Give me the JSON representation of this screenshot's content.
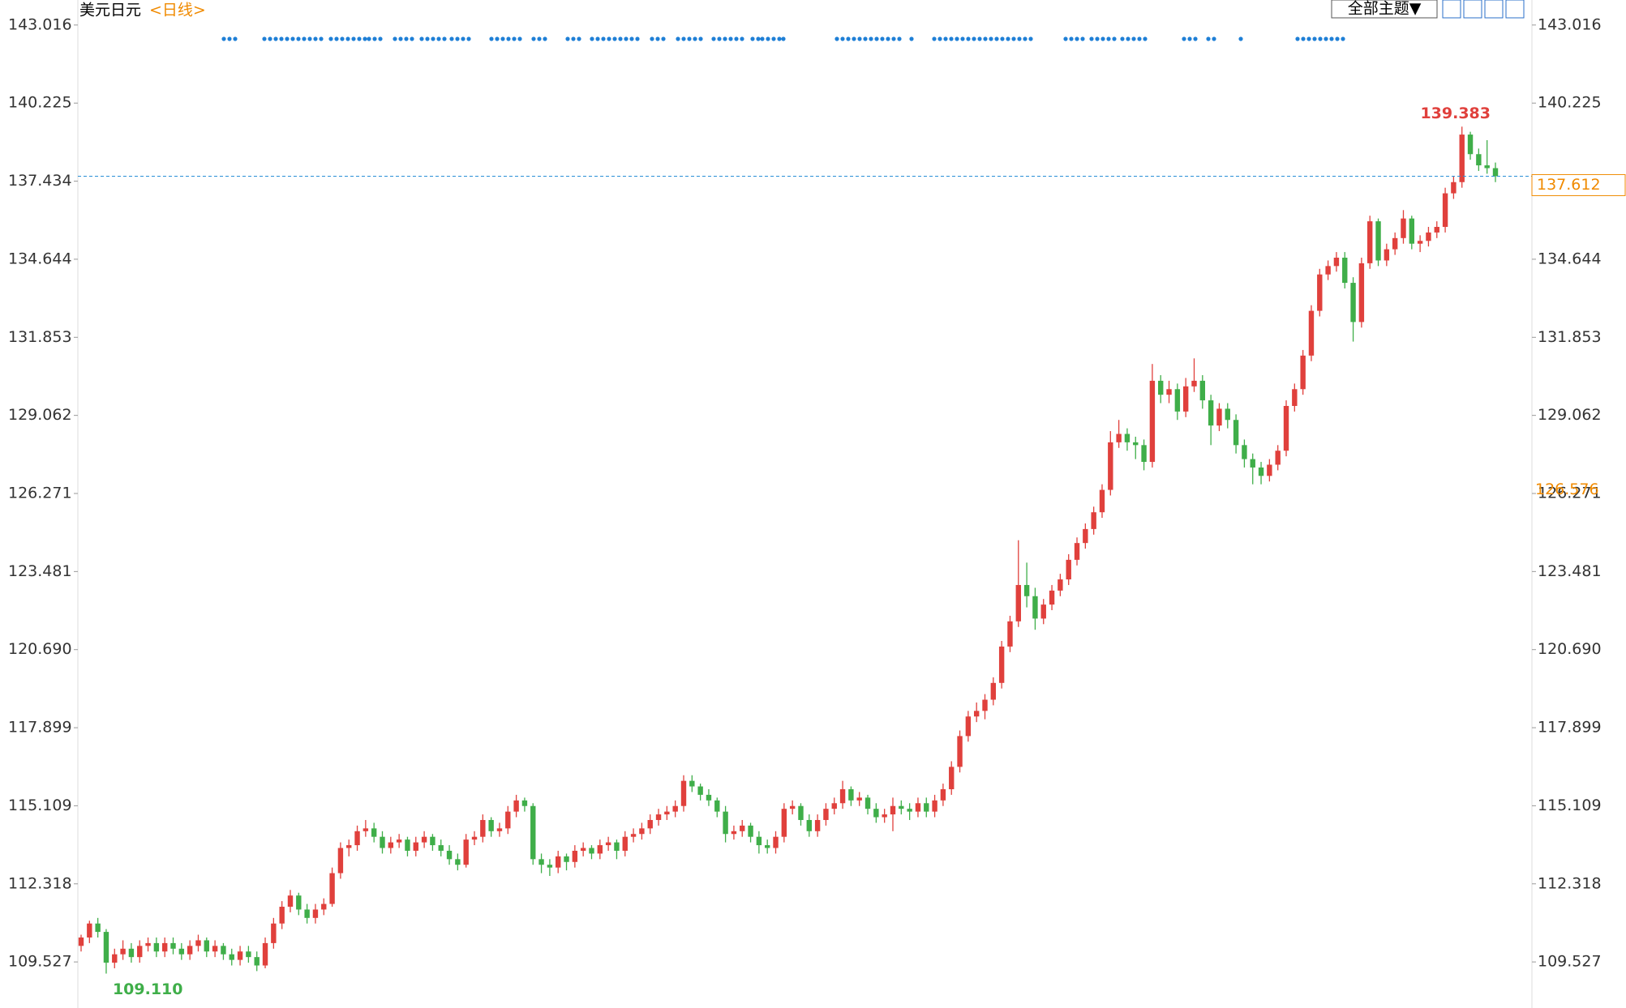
{
  "chart_data": {
    "type": "candlestick",
    "title": "美元日元",
    "period": "<日线>",
    "theme_button": "全部主题▼",
    "up_color": "#e0403c",
    "down_color": "#3fae49",
    "grid": false,
    "ylim": [
      107.88,
      143.91
    ],
    "yticks": [
      109.527,
      112.318,
      115.109,
      117.899,
      {
        "value": 120.69,
        "label": "120.690"
      },
      123.481,
      126.271,
      129.062,
      131.853,
      134.644,
      137.434,
      140.225,
      143.016
    ],
    "marker_value": 126.576,
    "extreme_labels": {
      "high": "139.383",
      "low": "109.110"
    },
    "ohlc": [
      [
        110.1,
        110.5,
        109.9,
        110.4
      ],
      [
        110.4,
        111.0,
        110.2,
        110.9
      ],
      [
        110.9,
        111.1,
        110.4,
        110.6
      ],
      [
        110.6,
        110.7,
        109.11,
        109.5
      ],
      [
        109.5,
        110.0,
        109.3,
        109.8
      ],
      [
        109.8,
        110.3,
        109.6,
        110.0
      ],
      [
        110.0,
        110.2,
        109.5,
        109.7
      ],
      [
        109.7,
        110.3,
        109.5,
        110.1
      ],
      [
        110.1,
        110.4,
        109.9,
        110.2
      ],
      [
        110.2,
        110.4,
        109.7,
        109.9
      ],
      [
        109.9,
        110.4,
        109.7,
        110.2
      ],
      [
        110.2,
        110.4,
        109.8,
        110.0
      ],
      [
        110.0,
        110.2,
        109.6,
        109.8
      ],
      [
        109.8,
        110.3,
        109.6,
        110.1
      ],
      [
        110.1,
        110.5,
        109.9,
        110.3
      ],
      [
        110.3,
        110.4,
        109.7,
        109.9
      ],
      [
        109.9,
        110.3,
        109.7,
        110.1
      ],
      [
        110.1,
        110.2,
        109.6,
        109.8
      ],
      [
        109.8,
        110.0,
        109.4,
        109.6
      ],
      [
        109.6,
        110.1,
        109.4,
        109.9
      ],
      [
        109.9,
        110.1,
        109.5,
        109.7
      ],
      [
        109.7,
        109.9,
        109.2,
        109.4
      ],
      [
        109.4,
        110.4,
        109.3,
        110.2
      ],
      [
        110.2,
        111.1,
        110.0,
        110.9
      ],
      [
        110.9,
        111.7,
        110.7,
        111.5
      ],
      [
        111.5,
        112.1,
        111.3,
        111.9
      ],
      [
        111.9,
        112.0,
        111.2,
        111.4
      ],
      [
        111.4,
        111.6,
        110.9,
        111.1
      ],
      [
        111.1,
        111.6,
        110.9,
        111.4
      ],
      [
        111.4,
        111.8,
        111.2,
        111.6
      ],
      [
        111.6,
        112.9,
        111.5,
        112.7
      ],
      [
        112.7,
        113.8,
        112.5,
        113.6
      ],
      [
        113.6,
        113.9,
        113.3,
        113.7
      ],
      [
        113.7,
        114.4,
        113.5,
        114.2
      ],
      [
        114.2,
        114.6,
        114.0,
        114.3
      ],
      [
        114.3,
        114.5,
        113.8,
        114.0
      ],
      [
        114.0,
        114.2,
        113.4,
        113.6
      ],
      [
        113.6,
        114.0,
        113.4,
        113.8
      ],
      [
        113.8,
        114.1,
        113.6,
        113.9
      ],
      [
        113.9,
        114.0,
        113.3,
        113.5
      ],
      [
        113.5,
        114.0,
        113.3,
        113.8
      ],
      [
        113.8,
        114.2,
        113.6,
        114.0
      ],
      [
        114.0,
        114.1,
        113.5,
        113.7
      ],
      [
        113.7,
        113.9,
        113.3,
        113.5
      ],
      [
        113.5,
        113.7,
        113.0,
        113.2
      ],
      [
        113.2,
        113.4,
        112.8,
        113.0
      ],
      [
        113.0,
        114.1,
        112.9,
        113.9
      ],
      [
        113.9,
        114.2,
        113.7,
        114.0
      ],
      [
        114.0,
        114.8,
        113.8,
        114.6
      ],
      [
        114.6,
        114.7,
        114.0,
        114.2
      ],
      [
        114.2,
        114.5,
        114.0,
        114.3
      ],
      [
        114.3,
        115.1,
        114.1,
        114.9
      ],
      [
        114.9,
        115.5,
        114.7,
        115.3
      ],
      [
        115.3,
        115.4,
        114.9,
        115.1
      ],
      [
        115.1,
        115.2,
        113.0,
        113.2
      ],
      [
        113.2,
        113.4,
        112.7,
        113.0
      ],
      [
        113.0,
        113.2,
        112.6,
        112.9
      ],
      [
        112.9,
        113.5,
        112.7,
        113.3
      ],
      [
        113.3,
        113.4,
        112.8,
        113.1
      ],
      [
        113.1,
        113.7,
        112.9,
        113.5
      ],
      [
        113.5,
        113.8,
        113.3,
        113.6
      ],
      [
        113.6,
        113.7,
        113.2,
        113.4
      ],
      [
        113.4,
        113.9,
        113.2,
        113.7
      ],
      [
        113.7,
        114.0,
        113.5,
        113.8
      ],
      [
        113.8,
        113.9,
        113.2,
        113.5
      ],
      [
        113.5,
        114.2,
        113.3,
        114.0
      ],
      [
        114.0,
        114.3,
        113.8,
        114.1
      ],
      [
        114.1,
        114.5,
        113.9,
        114.3
      ],
      [
        114.3,
        114.8,
        114.1,
        114.6
      ],
      [
        114.6,
        115.0,
        114.4,
        114.8
      ],
      [
        114.8,
        115.1,
        114.6,
        114.9
      ],
      [
        114.9,
        115.3,
        114.7,
        115.1
      ],
      [
        115.1,
        116.2,
        114.9,
        116.0
      ],
      [
        116.0,
        116.2,
        115.6,
        115.8
      ],
      [
        115.8,
        115.9,
        115.3,
        115.5
      ],
      [
        115.5,
        115.7,
        115.1,
        115.3
      ],
      [
        115.3,
        115.4,
        114.7,
        114.9
      ],
      [
        114.9,
        115.1,
        113.8,
        114.1
      ],
      [
        114.1,
        114.4,
        113.9,
        114.2
      ],
      [
        114.2,
        114.6,
        114.0,
        114.4
      ],
      [
        114.4,
        114.5,
        113.8,
        114.0
      ],
      [
        114.0,
        114.2,
        113.4,
        113.7
      ],
      [
        113.7,
        113.9,
        113.4,
        113.6
      ],
      [
        113.6,
        114.2,
        113.4,
        114.0
      ],
      [
        114.0,
        115.2,
        113.8,
        115.0
      ],
      [
        115.0,
        115.3,
        114.8,
        115.1
      ],
      [
        115.1,
        115.2,
        114.4,
        114.6
      ],
      [
        114.6,
        114.8,
        114.0,
        114.2
      ],
      [
        114.2,
        114.8,
        114.0,
        114.6
      ],
      [
        114.6,
        115.2,
        114.4,
        115.0
      ],
      [
        115.0,
        115.4,
        114.8,
        115.2
      ],
      [
        115.2,
        116.0,
        115.0,
        115.7
      ],
      [
        115.7,
        115.8,
        115.1,
        115.3
      ],
      [
        115.3,
        115.6,
        115.1,
        115.4
      ],
      [
        115.4,
        115.5,
        114.8,
        115.0
      ],
      [
        115.0,
        115.2,
        114.5,
        114.7
      ],
      [
        114.7,
        115.0,
        114.5,
        114.8
      ],
      [
        114.8,
        115.4,
        114.2,
        115.1
      ],
      [
        115.1,
        115.3,
        114.8,
        115.0
      ],
      [
        115.0,
        115.2,
        114.6,
        114.9
      ],
      [
        114.9,
        115.4,
        114.7,
        115.2
      ],
      [
        115.2,
        115.4,
        114.7,
        114.9
      ],
      [
        114.9,
        115.5,
        114.7,
        115.3
      ],
      [
        115.3,
        115.9,
        115.1,
        115.7
      ],
      [
        115.7,
        116.7,
        115.5,
        116.5
      ],
      [
        116.5,
        117.8,
        116.3,
        117.6
      ],
      [
        117.6,
        118.5,
        117.4,
        118.3
      ],
      [
        118.3,
        118.8,
        118.1,
        118.5
      ],
      [
        118.5,
        119.1,
        118.2,
        118.9
      ],
      [
        118.9,
        119.7,
        118.7,
        119.5
      ],
      [
        119.5,
        121.0,
        119.3,
        120.8
      ],
      [
        120.8,
        121.9,
        120.6,
        121.7
      ],
      [
        121.7,
        124.6,
        121.5,
        123.0
      ],
      [
        123.0,
        123.8,
        122.2,
        122.6
      ],
      [
        122.6,
        122.9,
        121.4,
        121.8
      ],
      [
        121.8,
        122.5,
        121.6,
        122.3
      ],
      [
        122.3,
        123.0,
        122.1,
        122.8
      ],
      [
        122.8,
        123.4,
        122.6,
        123.2
      ],
      [
        123.2,
        124.1,
        123.0,
        123.9
      ],
      [
        123.9,
        124.7,
        123.7,
        124.5
      ],
      [
        124.5,
        125.2,
        124.3,
        125.0
      ],
      [
        125.0,
        125.8,
        124.8,
        125.6
      ],
      [
        125.6,
        126.6,
        125.4,
        126.4
      ],
      [
        126.4,
        128.5,
        126.2,
        128.1
      ],
      [
        128.1,
        128.9,
        127.9,
        128.4
      ],
      [
        128.4,
        128.6,
        127.8,
        128.1
      ],
      [
        128.1,
        128.3,
        127.5,
        128.0
      ],
      [
        128.0,
        128.2,
        127.1,
        127.4
      ],
      [
        127.4,
        130.9,
        127.2,
        130.3
      ],
      [
        130.3,
        130.5,
        129.5,
        129.8
      ],
      [
        129.8,
        130.3,
        129.5,
        130.0
      ],
      [
        130.0,
        130.2,
        128.9,
        129.2
      ],
      [
        129.2,
        130.4,
        129.0,
        130.1
      ],
      [
        130.1,
        131.1,
        129.9,
        130.3
      ],
      [
        130.3,
        130.5,
        129.3,
        129.6
      ],
      [
        129.6,
        129.8,
        128.0,
        128.7
      ],
      [
        128.7,
        129.5,
        128.5,
        129.3
      ],
      [
        129.3,
        129.5,
        128.6,
        128.9
      ],
      [
        128.9,
        129.1,
        127.7,
        128.0
      ],
      [
        128.0,
        128.2,
        127.2,
        127.5
      ],
      [
        127.5,
        127.7,
        126.6,
        127.2
      ],
      [
        127.2,
        127.4,
        126.6,
        126.9
      ],
      [
        126.9,
        127.5,
        126.7,
        127.3
      ],
      [
        127.3,
        128.0,
        127.1,
        127.8
      ],
      [
        127.8,
        129.6,
        127.6,
        129.4
      ],
      [
        129.4,
        130.2,
        129.2,
        130.0
      ],
      [
        130.0,
        131.4,
        129.8,
        131.2
      ],
      [
        131.2,
        133.0,
        131.0,
        132.8
      ],
      [
        132.8,
        134.3,
        132.6,
        134.1
      ],
      [
        134.1,
        134.6,
        133.9,
        134.4
      ],
      [
        134.4,
        134.9,
        134.2,
        134.7
      ],
      [
        134.7,
        134.9,
        133.6,
        133.8
      ],
      [
        133.8,
        134.0,
        131.7,
        132.4
      ],
      [
        132.4,
        134.7,
        132.2,
        134.5
      ],
      [
        134.5,
        136.2,
        134.3,
        136.0
      ],
      [
        136.0,
        136.1,
        134.4,
        134.6
      ],
      [
        134.6,
        135.2,
        134.4,
        135.0
      ],
      [
        135.0,
        135.6,
        134.8,
        135.4
      ],
      [
        135.4,
        136.4,
        135.2,
        136.1
      ],
      [
        136.1,
        136.2,
        135.0,
        135.2
      ],
      [
        135.2,
        135.5,
        134.9,
        135.3
      ],
      [
        135.3,
        135.8,
        135.1,
        135.6
      ],
      [
        135.6,
        136.0,
        135.4,
        135.8
      ],
      [
        135.8,
        137.2,
        135.6,
        137.0
      ],
      [
        137.0,
        137.6,
        136.8,
        137.4
      ],
      [
        137.4,
        139.383,
        137.2,
        139.1
      ],
      [
        139.1,
        139.2,
        138.2,
        138.4
      ],
      [
        138.4,
        138.6,
        137.8,
        138.0
      ],
      [
        138.0,
        138.9,
        137.7,
        137.9
      ],
      [
        137.9,
        138.1,
        137.4,
        137.612
      ]
    ]
  }
}
